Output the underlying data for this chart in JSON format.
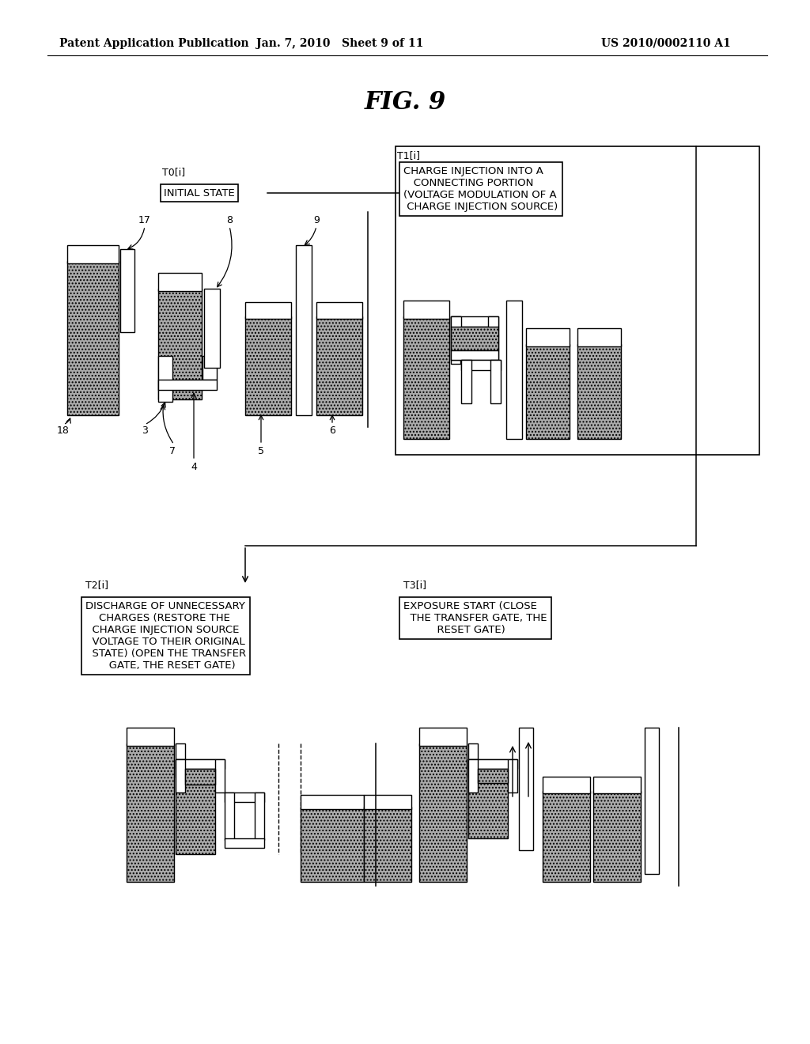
{
  "bg": "#ffffff",
  "header_left": "Patent Application Publication",
  "header_mid": "Jan. 7, 2010   Sheet 9 of 11",
  "header_right": "US 2010/0002110 A1",
  "fig_title": "FIG. 9",
  "T0_label": "T0[i]",
  "T0_text": "INITIAL STATE",
  "T1_label": "T1[i]",
  "T1_text": "CHARGE INJECTION INTO A\n   CONNECTING PORTION\n(VOLTAGE MODULATION OF A\n CHARGE INJECTION SOURCE)",
  "T2_label": "T2[i]",
  "T2_text": "DISCHARGE OF UNNECESSARY\n    CHARGES (RESTORE THE\n  CHARGE INJECTION SOURCE\n  VOLTAGE TO THEIR ORIGINAL\n  STATE) (OPEN THE TRANSFER\n       GATE, THE RESET GATE)",
  "T3_label": "T3[i]",
  "T3_text": "EXPOSURE START (CLOSE\n  THE TRANSFER GATE, THE\n          RESET GATE)"
}
